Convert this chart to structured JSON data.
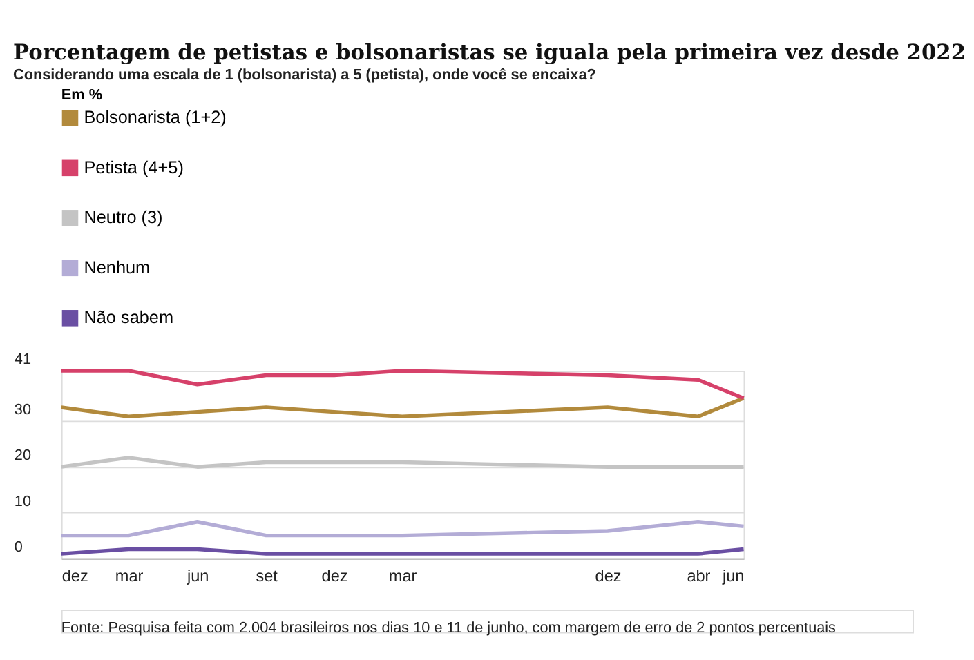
{
  "chart_data": {
    "type": "line",
    "title": "Porcentagem de petistas e bolsonaristas se iguala pela primeira vez desde 2022",
    "subtitle": "Considerando uma escala de 1 (bolsonarista) a 5 (petista), onde você se encaixa?",
    "legend_title": "Em %",
    "legend": "top left",
    "grid": "y",
    "line_style": "solid",
    "marker": "none",
    "x": [
      "2022-12",
      "2023-03",
      "2023-06",
      "2023-09",
      "2023-12",
      "2024-03",
      "2024-12",
      "2025-04",
      "2025-06"
    ],
    "xlim": [
      "2022-12",
      "2025-06"
    ],
    "xticks": [
      {
        "value": "2022-12",
        "label": "dez"
      },
      {
        "value": "2023-03",
        "label": "mar"
      },
      {
        "value": "2023-06",
        "label": "jun"
      },
      {
        "value": "2023-09",
        "label": "set"
      },
      {
        "value": "2023-12",
        "label": "dez"
      },
      {
        "value": "2024-03",
        "label": "mar"
      },
      {
        "value": "2024-12",
        "label": "dez"
      },
      {
        "value": "2025-04",
        "label": "abr"
      },
      {
        "value": "2025-06",
        "label": "jun"
      }
    ],
    "ylim": [
      0,
      41
    ],
    "yticks": [
      0,
      10,
      20,
      30,
      41
    ],
    "series": [
      {
        "name": "Bolsonarista (1+2)",
        "color": "#b28a3c",
        "values": [
          33,
          31,
          32,
          33,
          32,
          31,
          33,
          31,
          35
        ]
      },
      {
        "name": "Petista (4+5)",
        "color": "#d6416a",
        "values": [
          41,
          41,
          38,
          40,
          40,
          41,
          40,
          39,
          35
        ]
      },
      {
        "name": "Neutro (3)",
        "color": "#c4c4c4",
        "values": [
          20,
          22,
          20,
          21,
          21,
          21,
          20,
          20,
          20
        ]
      },
      {
        "name": "Nenhum",
        "color": "#b3acd6",
        "values": [
          5,
          5,
          8,
          5,
          5,
          5,
          6,
          8,
          7
        ]
      },
      {
        "name": "Não sabem",
        "color": "#6a4fa3",
        "values": [
          1,
          2,
          2,
          1,
          1,
          1,
          1,
          1,
          2
        ]
      }
    ],
    "annotations": [
      "Fonte: Pesquisa feita com 2.004 brasileiros nos dias 10 e 11 de junho, com margem de erro de 2 pontos percentuais"
    ]
  }
}
